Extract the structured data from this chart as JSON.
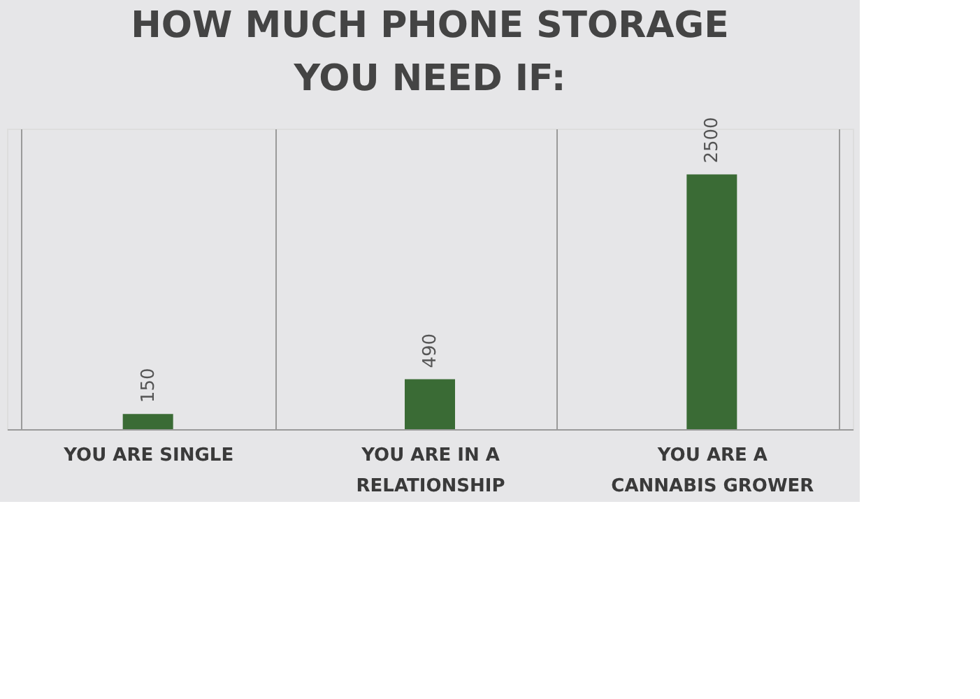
{
  "chart_data": {
    "type": "bar",
    "title": [
      "HOW MUCH PHONE STORAGE",
      "YOU NEED IF:"
    ],
    "categories": [
      "YOU ARE SINGLE",
      "YOU ARE IN A RELATIONSHIP",
      "YOU ARE A CANNABIS GROWER"
    ],
    "values": [
      150,
      490,
      2500
    ],
    "color": "#3a6b35",
    "data_labels": true,
    "grid": "x"
  }
}
